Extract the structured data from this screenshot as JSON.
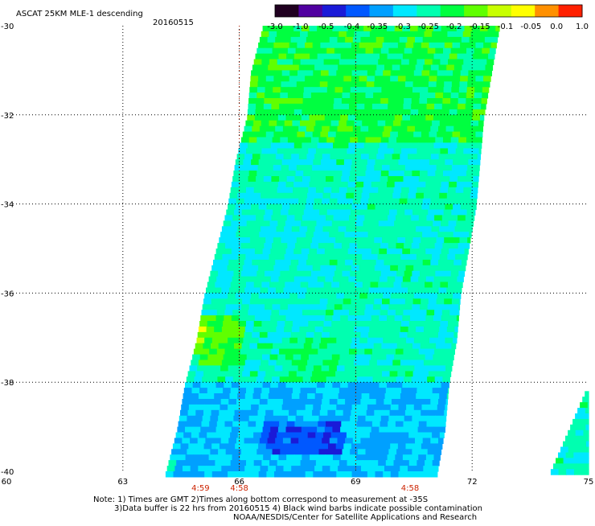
{
  "header": {
    "product": "ASCAT 25KM MLE-1 descending",
    "date": "20160515"
  },
  "colorbar": {
    "labels": [
      "-3.0",
      "-1.0",
      "-0.5",
      "-0.4",
      "-0.35",
      "-0.3",
      "-0.25",
      "-0.2",
      "-0.15",
      "-0.1",
      "-0.05",
      "0.0",
      "1.0"
    ],
    "colors": [
      "#200020",
      "#5000a0",
      "#1a1ad8",
      "#0058ff",
      "#00a0ff",
      "#00e8ff",
      "#00ffb0",
      "#00ff40",
      "#60ff00",
      "#c8ff00",
      "#ffff00",
      "#ff9000",
      "#ff2000"
    ]
  },
  "axes": {
    "x_ticks": [
      "60",
      "63",
      "66",
      "69",
      "72",
      "75"
    ],
    "y_ticks": [
      "-30",
      "-32",
      "-34",
      "-36",
      "-38",
      "-40"
    ],
    "lon_range": [
      60,
      75
    ],
    "lat_range": [
      -40,
      -30
    ]
  },
  "times": [
    {
      "label": "4:59",
      "lon": 65.0
    },
    {
      "label": "4:58",
      "lon": 66.0
    },
    {
      "label": "4:58",
      "lon": 70.4
    }
  ],
  "notes": {
    "line1": "Note: 1) Times are GMT 2)Times along bottom correspond to measurement at -35S",
    "line2": "3)Data buffer is 22 hrs from 20160515 4) Black wind barbs indicate possible contamination",
    "line3": "NOAA/NESDIS/Center for Satellite Applications and Research"
  },
  "chart_data": {
    "type": "heatmap",
    "variable": "MLE",
    "colorbar_values": [
      -3.0,
      -1.0,
      -0.5,
      -0.4,
      -0.35,
      -0.3,
      -0.25,
      -0.2,
      -0.15,
      -0.1,
      -0.05,
      0.0,
      1.0
    ],
    "xlim": [
      60,
      75
    ],
    "ylim": [
      -40,
      -30
    ],
    "x_ticks": [
      60,
      63,
      66,
      69,
      72,
      75
    ],
    "y_ticks": [
      -30,
      -32,
      -34,
      -36,
      -38,
      -40
    ],
    "swaths": [
      {
        "left_edge": [
          [
            -30,
            66.6
          ],
          [
            -31,
            66.3
          ],
          [
            -32,
            66.2
          ],
          [
            -33,
            65.9
          ],
          [
            -34,
            65.7
          ],
          [
            -35,
            65.4
          ],
          [
            -36,
            65.1
          ],
          [
            -37,
            64.9
          ],
          [
            -38,
            64.6
          ],
          [
            -39,
            64.4
          ],
          [
            -40,
            64.1
          ]
        ],
        "right_edge": [
          [
            -30,
            72.7
          ],
          [
            -31,
            72.5
          ],
          [
            -32,
            72.3
          ],
          [
            -33,
            72.2
          ],
          [
            -34,
            72.1
          ],
          [
            -35,
            71.9
          ],
          [
            -36,
            71.7
          ],
          [
            -37,
            71.6
          ],
          [
            -38,
            71.4
          ],
          [
            -39,
            71.3
          ],
          [
            -40,
            71.1
          ]
        ]
      },
      {
        "left_edge": [
          [
            -38.2,
            74.9
          ],
          [
            -39,
            74.5
          ],
          [
            -40,
            74.0
          ]
        ],
        "right_edge": [
          [
            -38.2,
            75.0
          ],
          [
            -40,
            75.0
          ]
        ]
      }
    ],
    "regions": [
      {
        "lat": [
          -32.5,
          -30
        ],
        "lon": [
          66,
          72.7
        ],
        "value": -0.18
      },
      {
        "lat": [
          -36.5,
          -33.5
        ],
        "lon": [
          65,
          68
        ],
        "value": -0.25
      },
      {
        "lat": [
          -37.5,
          -36.5
        ],
        "lon": [
          64.8,
          66
        ],
        "value": -0.15
      },
      {
        "lat": [
          -38,
          -37
        ],
        "lon": [
          67,
          68.5
        ],
        "value": -0.2
      },
      {
        "lat": [
          -40,
          -38
        ],
        "lon": [
          64.2,
          71.3
        ],
        "value": -0.3
      },
      {
        "lat": [
          -39.6,
          -38.8
        ],
        "lon": [
          66.5,
          68.6
        ],
        "value": -0.38
      },
      {
        "lat": [
          -37.1,
          -36.7
        ],
        "lon": [
          64.9,
          65.0
        ],
        "value": -0.08
      }
    ]
  }
}
